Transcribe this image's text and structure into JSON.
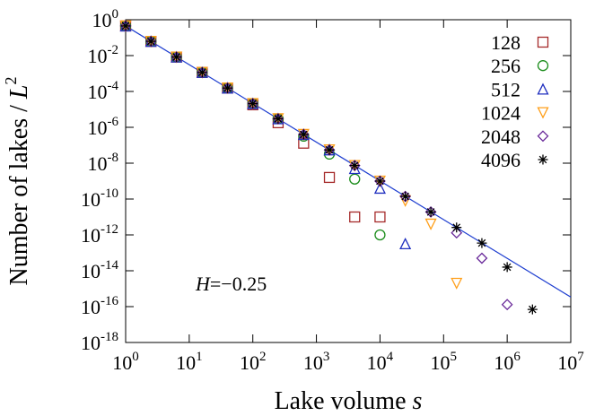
{
  "chart_data": {
    "type": "scatter",
    "x_label": {
      "text": "Lake volume ",
      "variable": "s"
    },
    "y_label": {
      "text": "Number of lakes / ",
      "variable": "L",
      "exponent": "2"
    },
    "annotation": {
      "variable": "H",
      "text": "=−0.25"
    },
    "log_x": true,
    "log_y": true,
    "xlim": [
      1,
      10000000
    ],
    "ylim": [
      1e-18,
      1
    ],
    "xticks": [
      {
        "value": 1,
        "label": "10",
        "exponent": "0"
      },
      {
        "value": 10,
        "label": "10",
        "exponent": "1"
      },
      {
        "value": 100,
        "label": "10",
        "exponent": "2"
      },
      {
        "value": 1000,
        "label": "10",
        "exponent": "3"
      },
      {
        "value": 10000,
        "label": "10",
        "exponent": "4"
      },
      {
        "value": 100000,
        "label": "10",
        "exponent": "5"
      },
      {
        "value": 1000000,
        "label": "10",
        "exponent": "6"
      },
      {
        "value": 10000000,
        "label": "10",
        "exponent": "7"
      }
    ],
    "yticks": [
      {
        "value": 1,
        "label": "10",
        "exponent": "0"
      },
      {
        "value": 0.01,
        "label": "10",
        "exponent": "-2"
      },
      {
        "value": 0.0001,
        "label": "10",
        "exponent": "-4"
      },
      {
        "value": 1e-06,
        "label": "10",
        "exponent": "-6"
      },
      {
        "value": 1e-08,
        "label": "10",
        "exponent": "-8"
      },
      {
        "value": 1e-10,
        "label": "10",
        "exponent": "-10"
      },
      {
        "value": 1e-12,
        "label": "10",
        "exponent": "-12"
      },
      {
        "value": 1e-14,
        "label": "10",
        "exponent": "-14"
      },
      {
        "value": 1e-16,
        "label": "10",
        "exponent": "-16"
      },
      {
        "value": 1e-18,
        "label": "10",
        "exponent": "-18"
      }
    ],
    "legend_position": "top-right",
    "series": [
      {
        "name": "128",
        "color": "#a52a2a",
        "marker": "square",
        "x": [
          1,
          2.5,
          6.3,
          16,
          40,
          100,
          250,
          630,
          1600,
          4000,
          10000
        ],
        "values": [
          0.45,
          0.062,
          0.0083,
          0.00115,
          0.000155,
          1.8e-05,
          1.8e-06,
          1.3e-07,
          1.6e-09,
          1e-11,
          1e-11
        ]
      },
      {
        "name": "256",
        "color": "#1a8c1a",
        "marker": "circle",
        "x": [
          1,
          2.5,
          6.3,
          16,
          40,
          100,
          250,
          630,
          1600,
          4000,
          10000
        ],
        "values": [
          0.45,
          0.062,
          0.0083,
          0.00115,
          0.000155,
          2.1e-05,
          3e-06,
          3.2e-07,
          3.2e-08,
          1.3e-09,
          1e-12
        ]
      },
      {
        "name": "512",
        "color": "#1f2fbf",
        "marker": "triangle-up",
        "x": [
          1,
          2.5,
          6.3,
          16,
          40,
          100,
          250,
          630,
          1600,
          4000,
          10000,
          25000
        ],
        "values": [
          0.45,
          0.062,
          0.0083,
          0.00115,
          0.000155,
          2.1e-05,
          3e-06,
          4e-07,
          5.5e-08,
          5e-09,
          4e-10,
          3.2e-13
        ]
      },
      {
        "name": "1024",
        "color": "#ff9f1a",
        "marker": "triangle-down",
        "x": [
          1,
          2.5,
          6.3,
          16,
          40,
          100,
          250,
          630,
          1600,
          4000,
          10000,
          25000,
          63000,
          160000
        ],
        "values": [
          0.45,
          0.062,
          0.0083,
          0.00115,
          0.000155,
          2.1e-05,
          3e-06,
          4e-07,
          5.5e-08,
          7.4e-09,
          1e-09,
          8e-11,
          4e-12,
          2e-15
        ]
      },
      {
        "name": "2048",
        "color": "#6a2a9a",
        "marker": "diamond",
        "x": [
          1,
          2.5,
          6.3,
          16,
          40,
          100,
          250,
          630,
          1600,
          4000,
          10000,
          25000,
          63000,
          160000,
          400000,
          1000000
        ],
        "values": [
          0.45,
          0.062,
          0.0083,
          0.00115,
          0.000155,
          2.1e-05,
          3e-06,
          4e-07,
          5.5e-08,
          7.4e-09,
          1e-09,
          1.4e-10,
          1.9e-11,
          1.3e-12,
          5e-14,
          1.3e-16
        ]
      },
      {
        "name": "4096",
        "color": "#000000",
        "marker": "star",
        "x": [
          1,
          2.5,
          6.3,
          16,
          40,
          100,
          250,
          630,
          1600,
          4000,
          10000,
          25000,
          63000,
          160000,
          400000,
          1000000,
          2500000
        ],
        "values": [
          0.45,
          0.062,
          0.0083,
          0.00115,
          0.000155,
          2.1e-05,
          3e-06,
          4e-07,
          5.5e-08,
          7.4e-09,
          1e-09,
          1.4e-10,
          1.9e-11,
          2.6e-12,
          3.5e-13,
          1.6e-14,
          7e-17
        ]
      }
    ],
    "fit_line": {
      "color": "#1f3fd0",
      "x": [
        1,
        10000000
      ],
      "values": [
        0.45,
        3.4e-16
      ]
    }
  }
}
